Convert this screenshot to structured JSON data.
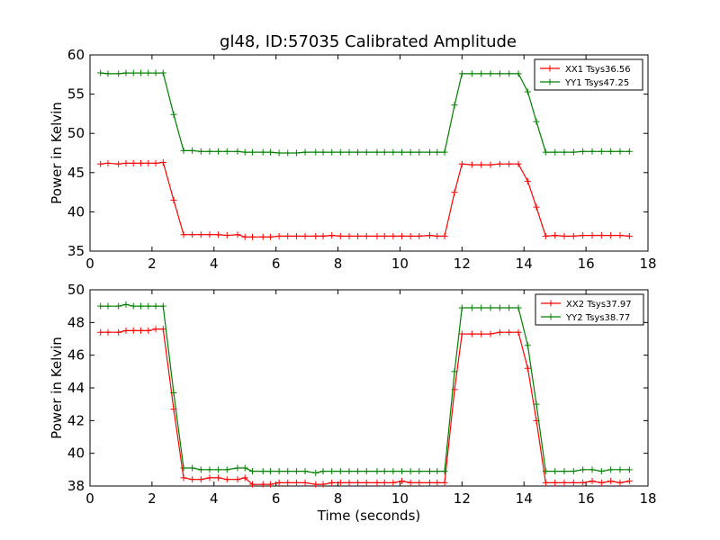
{
  "title": "gl48, ID:57035 Calibrated Amplitude",
  "colors": {
    "xx": "#ff0000",
    "yy": "#008000"
  },
  "chart_data": [
    {
      "type": "line",
      "ylabel": "Power in Kelvin",
      "xlabel": "",
      "xlim": [
        0,
        18
      ],
      "ylim": [
        35,
        60
      ],
      "xticks": [
        "0",
        "2",
        "4",
        "6",
        "8",
        "10",
        "12",
        "14",
        "16",
        "18"
      ],
      "yticks": [
        "35",
        "40",
        "45",
        "50",
        "55",
        "60"
      ],
      "grid": false,
      "legend_position": "top-right",
      "x": [
        0.34,
        0.58,
        0.92,
        1.16,
        1.4,
        1.64,
        1.88,
        2.12,
        2.36,
        2.7,
        3.02,
        3.3,
        3.58,
        3.86,
        4.14,
        4.42,
        4.76,
        5.0,
        5.24,
        5.58,
        5.82,
        6.1,
        6.38,
        6.66,
        6.94,
        7.28,
        7.52,
        7.8,
        8.08,
        8.36,
        8.64,
        8.92,
        9.26,
        9.5,
        9.78,
        10.06,
        10.34,
        10.62,
        10.96,
        11.2,
        11.44,
        11.76,
        12.0,
        12.32,
        12.62,
        12.92,
        13.22,
        13.52,
        13.82,
        14.12,
        14.4,
        14.7,
        15.0,
        15.3,
        15.6,
        15.9,
        16.2,
        16.5,
        16.8,
        17.1,
        17.4
      ],
      "series": [
        {
          "name": "XX1 Tsys36.56",
          "color": "#ff0000",
          "values": [
            46.1,
            46.2,
            46.1,
            46.2,
            46.2,
            46.2,
            46.2,
            46.2,
            46.3,
            41.5,
            37.1,
            37.1,
            37.1,
            37.1,
            37.1,
            37.0,
            37.1,
            36.8,
            36.8,
            36.8,
            36.8,
            36.9,
            36.9,
            36.9,
            36.9,
            36.9,
            36.9,
            37.0,
            36.9,
            36.9,
            36.9,
            36.9,
            36.9,
            36.9,
            36.9,
            36.9,
            36.9,
            36.9,
            37.0,
            36.9,
            36.9,
            42.5,
            46.1,
            46.0,
            46.0,
            46.0,
            46.1,
            46.1,
            46.1,
            43.9,
            40.6,
            36.9,
            37.0,
            36.9,
            36.9,
            37.0,
            37.0,
            37.0,
            37.0,
            37.0,
            36.9
          ]
        },
        {
          "name": "YY1 Tsys47.25",
          "color": "#008000",
          "values": [
            57.7,
            57.6,
            57.6,
            57.7,
            57.7,
            57.7,
            57.7,
            57.7,
            57.7,
            52.4,
            47.8,
            47.8,
            47.7,
            47.7,
            47.7,
            47.7,
            47.7,
            47.6,
            47.6,
            47.6,
            47.6,
            47.5,
            47.5,
            47.5,
            47.6,
            47.6,
            47.6,
            47.6,
            47.6,
            47.6,
            47.6,
            47.6,
            47.6,
            47.6,
            47.6,
            47.6,
            47.6,
            47.6,
            47.6,
            47.6,
            47.6,
            53.6,
            57.6,
            57.6,
            57.6,
            57.6,
            57.6,
            57.6,
            57.6,
            55.3,
            51.5,
            47.6,
            47.6,
            47.6,
            47.6,
            47.7,
            47.7,
            47.7,
            47.7,
            47.7,
            47.7
          ]
        }
      ]
    },
    {
      "type": "line",
      "ylabel": "Power in Kelvin",
      "xlabel": "Time (seconds)",
      "xlim": [
        0,
        18
      ],
      "ylim": [
        38,
        50
      ],
      "xticks": [
        "0",
        "2",
        "4",
        "6",
        "8",
        "10",
        "12",
        "14",
        "16",
        "18"
      ],
      "yticks": [
        "38",
        "40",
        "42",
        "44",
        "46",
        "48",
        "50"
      ],
      "grid": false,
      "legend_position": "top-right",
      "x": [
        0.34,
        0.58,
        0.92,
        1.16,
        1.4,
        1.64,
        1.88,
        2.12,
        2.36,
        2.7,
        3.02,
        3.3,
        3.58,
        3.86,
        4.14,
        4.42,
        4.76,
        5.0,
        5.24,
        5.58,
        5.82,
        6.1,
        6.38,
        6.66,
        6.94,
        7.28,
        7.52,
        7.8,
        8.08,
        8.36,
        8.64,
        8.92,
        9.26,
        9.5,
        9.78,
        10.06,
        10.34,
        10.62,
        10.96,
        11.2,
        11.44,
        11.76,
        12.0,
        12.32,
        12.62,
        12.92,
        13.22,
        13.52,
        13.82,
        14.12,
        14.4,
        14.7,
        15.0,
        15.3,
        15.6,
        15.9,
        16.2,
        16.5,
        16.8,
        17.1,
        17.4
      ],
      "series": [
        {
          "name": "XX2 Tsys37.97",
          "color": "#ff0000",
          "values": [
            47.4,
            47.4,
            47.4,
            47.5,
            47.5,
            47.5,
            47.5,
            47.6,
            47.6,
            42.7,
            38.5,
            38.4,
            38.4,
            38.5,
            38.5,
            38.4,
            38.4,
            38.5,
            38.1,
            38.1,
            38.1,
            38.2,
            38.2,
            38.2,
            38.2,
            38.1,
            38.1,
            38.2,
            38.2,
            38.2,
            38.2,
            38.2,
            38.2,
            38.2,
            38.2,
            38.3,
            38.2,
            38.2,
            38.2,
            38.2,
            38.2,
            43.9,
            47.3,
            47.3,
            47.3,
            47.3,
            47.4,
            47.4,
            47.4,
            45.2,
            42.0,
            38.2,
            38.2,
            38.2,
            38.2,
            38.2,
            38.3,
            38.2,
            38.3,
            38.2,
            38.3
          ]
        },
        {
          "name": "YY2 Tsys38.77",
          "color": "#008000",
          "values": [
            49.0,
            49.0,
            49.0,
            49.1,
            49.0,
            49.0,
            49.0,
            49.0,
            49.0,
            43.7,
            39.1,
            39.1,
            39.0,
            39.0,
            39.0,
            39.0,
            39.1,
            39.1,
            38.9,
            38.9,
            38.9,
            38.9,
            38.9,
            38.9,
            38.9,
            38.8,
            38.9,
            38.9,
            38.9,
            38.9,
            38.9,
            38.9,
            38.9,
            38.9,
            38.9,
            38.9,
            38.9,
            38.9,
            38.9,
            38.9,
            38.9,
            45.0,
            48.9,
            48.9,
            48.9,
            48.9,
            48.9,
            48.9,
            48.9,
            46.6,
            43.0,
            38.9,
            38.9,
            38.9,
            38.9,
            39.0,
            39.0,
            38.9,
            39.0,
            39.0,
            39.0
          ]
        }
      ]
    }
  ]
}
